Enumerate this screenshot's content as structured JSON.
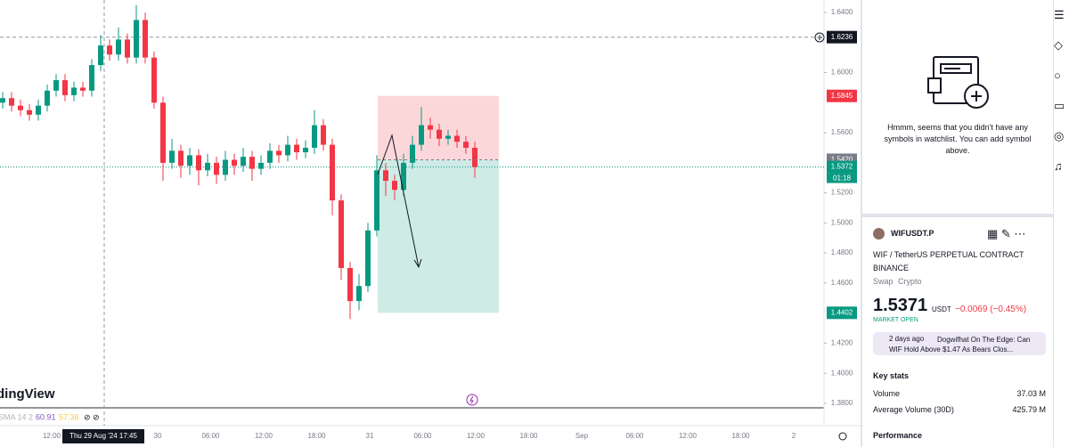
{
  "chart": {
    "watermark": "dingView",
    "indicator": {
      "name": "SMA 14 2",
      "value_1": "60.91",
      "value_2": "57.36"
    },
    "ylim": [
      1.377,
      1.6483
    ],
    "yticks": [
      {
        "value": 1.64,
        "label": "1.6400"
      },
      {
        "value": 1.6,
        "label": "1.6000"
      },
      {
        "value": 1.56,
        "label": "1.5600"
      },
      {
        "value": 1.52,
        "label": "1.5200"
      },
      {
        "value": 1.5,
        "label": "1.5000"
      },
      {
        "value": 1.48,
        "label": "1.4800"
      },
      {
        "value": 1.46,
        "label": "1.4600"
      },
      {
        "value": 1.42,
        "label": "1.4200"
      },
      {
        "value": 1.4,
        "label": "1.4000"
      },
      {
        "value": 1.38,
        "label": "1.3800"
      }
    ],
    "xticks": [
      "12:00",
      null,
      "30",
      "06:00",
      "12:00",
      "18:00",
      "31",
      "06:00",
      "12:00",
      "18:00",
      "Sep",
      "06:00",
      "12:00",
      "18:00",
      "2"
    ],
    "crosshair": {
      "price": {
        "value": 1.6236,
        "label": "1.6236"
      },
      "time": "Thu 29 Aug '24 17:45"
    },
    "last_price": {
      "value": 1.5372,
      "label": "1.5372",
      "countdown": "01:18"
    },
    "position": {
      "stop": {
        "value": 1.5845,
        "label": "1.5845"
      },
      "entry": {
        "value": 1.542,
        "label": "1.5420"
      },
      "target": {
        "value": 1.4402,
        "label": "1.4402"
      }
    },
    "ohlc": [
      [
        1.58,
        1.587,
        1.576,
        1.583
      ],
      [
        1.583,
        1.587,
        1.574,
        1.578
      ],
      [
        1.578,
        1.582,
        1.571,
        1.575
      ],
      [
        1.575,
        1.579,
        1.568,
        1.572
      ],
      [
        1.572,
        1.582,
        1.568,
        1.578
      ],
      [
        1.578,
        1.592,
        1.574,
        1.588
      ],
      [
        1.588,
        1.599,
        1.584,
        1.595
      ],
      [
        1.595,
        1.599,
        1.581,
        1.585
      ],
      [
        1.585,
        1.594,
        1.581,
        1.59
      ],
      [
        1.59,
        1.594,
        1.584,
        1.588
      ],
      [
        1.588,
        1.609,
        1.584,
        1.605
      ],
      [
        1.605,
        1.625,
        1.601,
        1.618
      ],
      [
        1.618,
        1.622,
        1.608,
        1.612
      ],
      [
        1.612,
        1.63,
        1.608,
        1.622
      ],
      [
        1.622,
        1.626,
        1.606,
        1.61
      ],
      [
        1.61,
        1.645,
        1.606,
        1.635
      ],
      [
        1.635,
        1.64,
        1.606,
        1.61
      ],
      [
        1.61,
        1.614,
        1.576,
        1.58
      ],
      [
        1.58,
        1.584,
        1.528,
        1.54
      ],
      [
        1.54,
        1.556,
        1.536,
        1.548
      ],
      [
        1.548,
        1.552,
        1.53,
        1.538
      ],
      [
        1.538,
        1.55,
        1.532,
        1.545
      ],
      [
        1.545,
        1.549,
        1.525,
        1.535
      ],
      [
        1.535,
        1.546,
        1.531,
        1.54
      ],
      [
        1.54,
        1.544,
        1.526,
        1.532
      ],
      [
        1.532,
        1.548,
        1.528,
        1.542
      ],
      [
        1.542,
        1.546,
        1.532,
        1.538
      ],
      [
        1.538,
        1.55,
        1.534,
        1.544
      ],
      [
        1.544,
        1.548,
        1.528,
        1.536
      ],
      [
        1.536,
        1.545,
        1.532,
        1.54
      ],
      [
        1.54,
        1.553,
        1.536,
        1.548
      ],
      [
        1.548,
        1.552,
        1.54,
        1.545
      ],
      [
        1.545,
        1.558,
        1.541,
        1.552
      ],
      [
        1.552,
        1.556,
        1.542,
        1.547
      ],
      [
        1.547,
        1.555,
        1.543,
        1.55
      ],
      [
        1.55,
        1.575,
        1.546,
        1.565
      ],
      [
        1.565,
        1.569,
        1.548,
        1.552
      ],
      [
        1.552,
        1.556,
        1.505,
        1.515
      ],
      [
        1.515,
        1.519,
        1.462,
        1.47
      ],
      [
        1.47,
        1.474,
        1.436,
        1.448
      ],
      [
        1.448,
        1.466,
        1.442,
        1.458
      ],
      [
        1.458,
        1.5,
        1.454,
        1.495
      ],
      [
        1.495,
        1.545,
        1.491,
        1.535
      ],
      [
        1.535,
        1.54,
        1.518,
        1.528
      ],
      [
        1.528,
        1.532,
        1.515,
        1.522
      ],
      [
        1.522,
        1.546,
        1.518,
        1.54
      ],
      [
        1.54,
        1.558,
        1.536,
        1.552
      ],
      [
        1.552,
        1.577,
        1.548,
        1.565
      ],
      [
        1.565,
        1.57,
        1.556,
        1.562
      ],
      [
        1.562,
        1.566,
        1.551,
        1.556
      ],
      [
        1.556,
        1.562,
        1.552,
        1.558
      ],
      [
        1.558,
        1.562,
        1.55,
        1.554
      ],
      [
        1.554,
        1.558,
        1.546,
        1.55
      ],
      [
        1.55,
        1.554,
        1.53,
        1.5372
      ]
    ]
  },
  "watchlist": {
    "empty_message": "Hmmm, seems that you didn't have any symbols in watchlist. You can add symbol above."
  },
  "symbol": {
    "ticker": "WIFUSDT.P",
    "description": "WIF / TetherUS PERPETUAL CONTRACT",
    "exchange": "BINANCE",
    "kind": "Swap",
    "category": "Crypto",
    "price": "1.5371",
    "currency": "USDT",
    "change": "−0.0069 (−0.45%)",
    "status": "MARKET OPEN",
    "news": {
      "time": "2 days ago",
      "headline": "Dogwifhat On The Edge: Can WIF Hold Above $1.47 As Bears Clos..."
    },
    "key_stats": {
      "title": "Key stats",
      "rows": [
        [
          "Volume",
          "37.03 M"
        ],
        [
          "Average Volume (30D)",
          "425.79 M"
        ]
      ]
    },
    "performance": "Performance"
  }
}
